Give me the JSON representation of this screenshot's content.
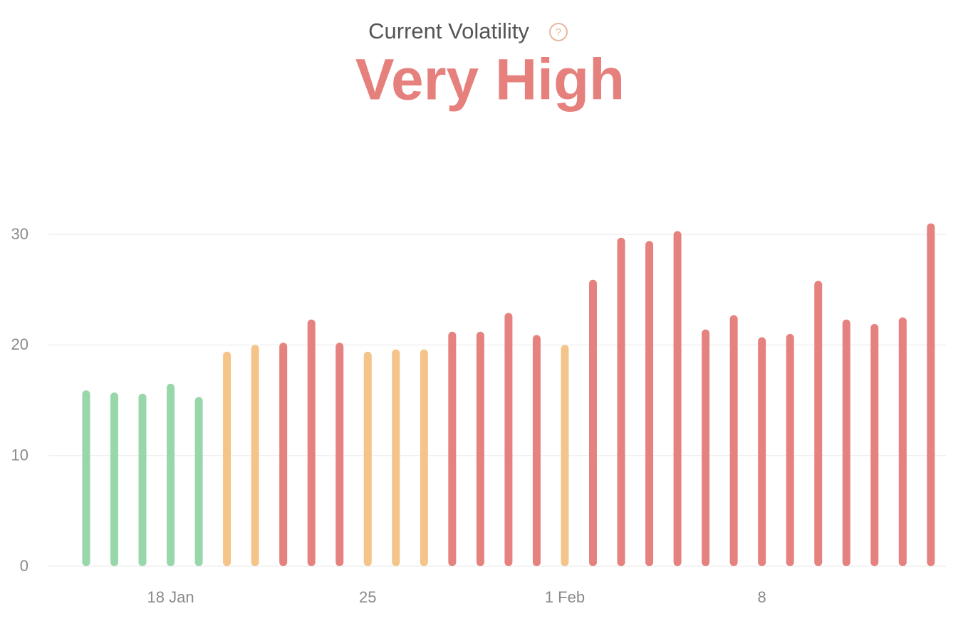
{
  "chart_data": {
    "type": "bar",
    "title": "Current Volatility",
    "help_icon": "?",
    "subtitle": "Very High",
    "categories": [
      null,
      null,
      null,
      "18 Jan",
      null,
      null,
      null,
      null,
      null,
      null,
      "25",
      null,
      null,
      null,
      null,
      null,
      null,
      "1 Feb",
      null,
      null,
      null,
      null,
      null,
      null,
      "8",
      null,
      null,
      null,
      null,
      null,
      null
    ],
    "values": [
      15.9,
      15.7,
      15.6,
      16.5,
      15.3,
      19.4,
      20.0,
      20.2,
      22.3,
      20.2,
      19.4,
      19.6,
      19.6,
      21.2,
      21.2,
      22.9,
      20.9,
      20.0,
      25.9,
      29.7,
      29.4,
      30.3,
      21.4,
      22.7,
      20.7,
      21.0,
      25.8,
      22.3,
      21.9,
      22.5,
      31.0
    ],
    "colors": [
      "#98d7a9",
      "#98d7a9",
      "#98d7a9",
      "#98d7a9",
      "#98d7a9",
      "#f4c489",
      "#f4c489",
      "#e5827f",
      "#e5827f",
      "#e5827f",
      "#f4c489",
      "#f4c489",
      "#f4c489",
      "#e5827f",
      "#e5827f",
      "#e5827f",
      "#e5827f",
      "#f4c489",
      "#e5827f",
      "#e5827f",
      "#e5827f",
      "#e5827f",
      "#e5827f",
      "#e5827f",
      "#e5827f",
      "#e5827f",
      "#e5827f",
      "#e5827f",
      "#e5827f",
      "#e5827f",
      "#e5827f"
    ],
    "ylim": [
      0,
      32
    ],
    "yticks": [
      0,
      10,
      20,
      30
    ],
    "grid": true
  }
}
